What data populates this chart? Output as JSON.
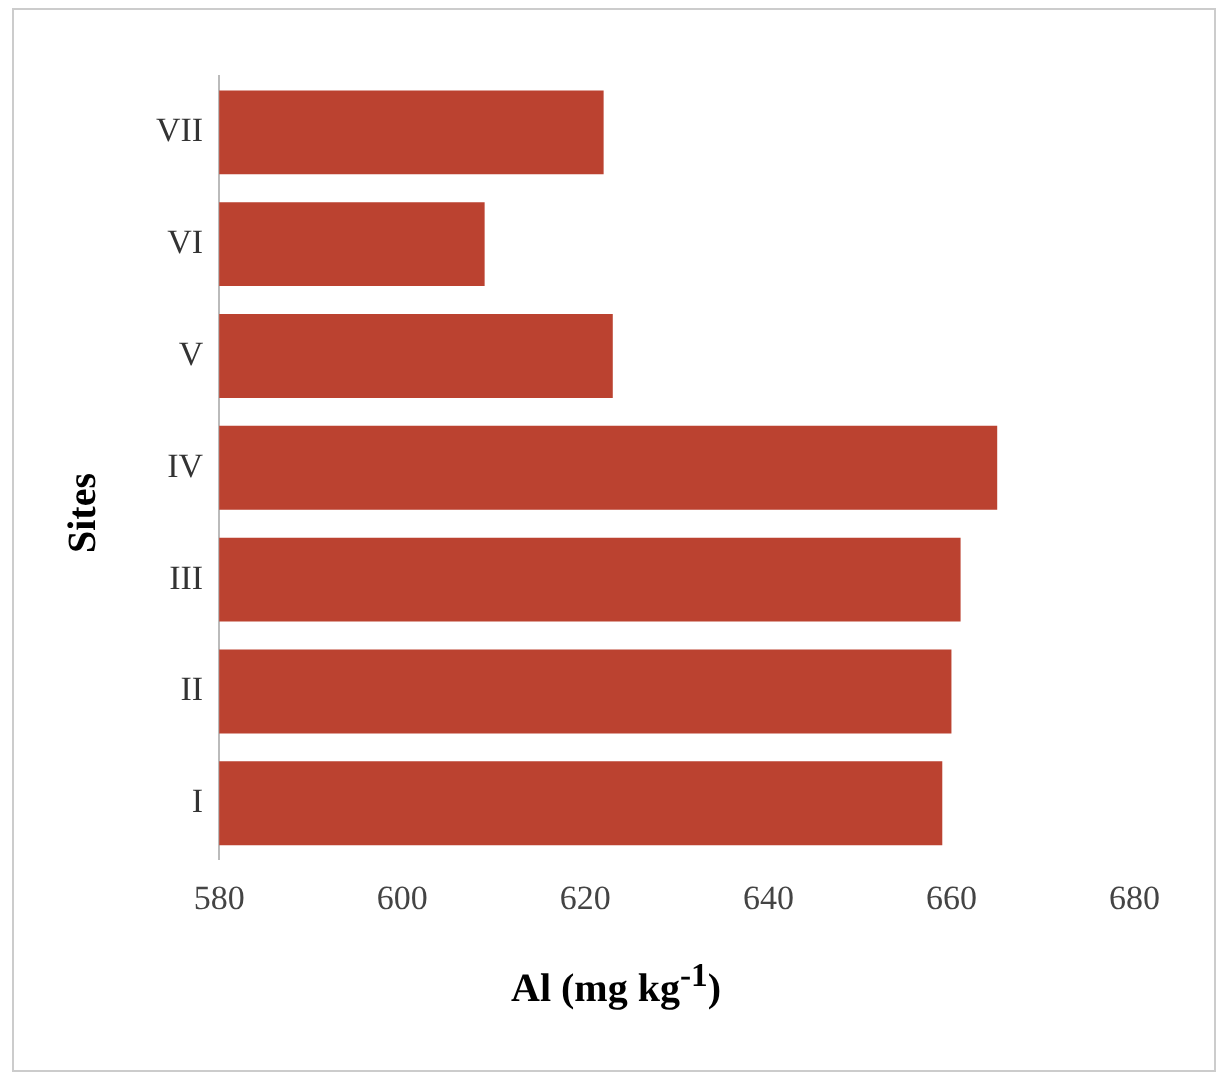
{
  "chart_data": {
    "type": "bar",
    "orientation": "horizontal",
    "xlabel": "Al (mg kg$^{-1}$)",
    "ylabel": "Sites",
    "categories": [
      "VII",
      "VI",
      "V",
      "IV",
      "III",
      "II",
      "I"
    ],
    "values": [
      622,
      609,
      623,
      665,
      661,
      660,
      659
    ],
    "color": "#bb4230",
    "xlim": [
      580,
      680
    ],
    "xticks": [
      580,
      600,
      620,
      640,
      660,
      680
    ],
    "grid": false
  }
}
